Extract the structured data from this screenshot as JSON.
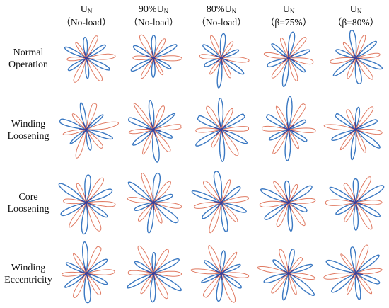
{
  "columns": [
    {
      "main_prefix": "",
      "main_sym": "U",
      "main_sub": "N",
      "cond": "（No-load）"
    },
    {
      "main_prefix": "90%",
      "main_sym": "U",
      "main_sub": "N",
      "cond": "（No-load）"
    },
    {
      "main_prefix": "80%",
      "main_sym": "U",
      "main_sub": "N",
      "cond": "（No-load）"
    },
    {
      "main_prefix": "",
      "main_sym": "U",
      "main_sub": "N",
      "cond": "（β=75%）"
    },
    {
      "main_prefix": "",
      "main_sym": "U",
      "main_sub": "N",
      "cond": "（β=80%）"
    }
  ],
  "rows": [
    {
      "line1": "Normal",
      "line2": "Operation"
    },
    {
      "line1": "Winding",
      "line2": "Loosening"
    },
    {
      "line1": "Core",
      "line2": "Loosening"
    },
    {
      "line1": "Winding",
      "line2": "Eccentricity"
    }
  ],
  "colors": {
    "blue": "#3a78c2",
    "orange": "#e07a62",
    "hub": "#3b3f99"
  }
}
